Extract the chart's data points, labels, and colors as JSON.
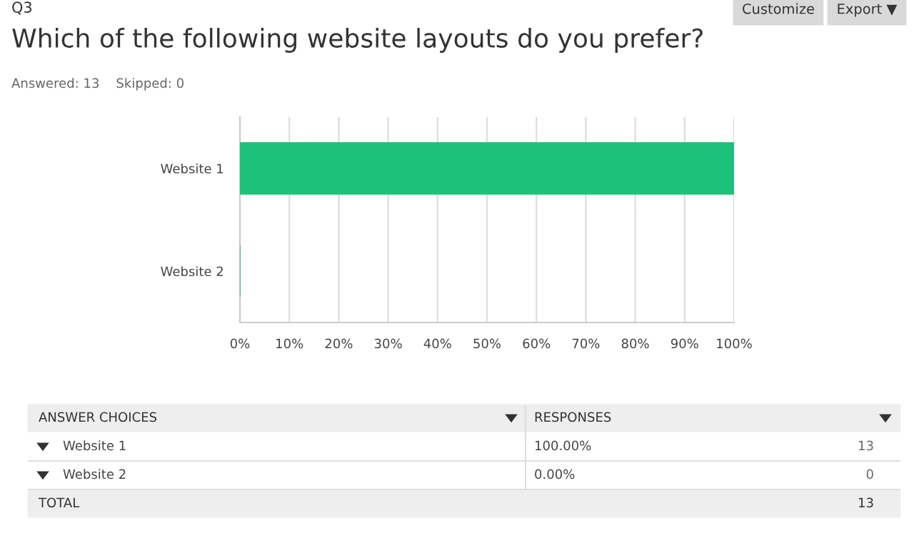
{
  "chart_data": {
    "type": "bar",
    "orientation": "horizontal",
    "title": "Which of the following website layouts do you prefer?",
    "subtitle": "Answered: 13    Skipped: 0",
    "categories": [
      "Website 1",
      "Website 2"
    ],
    "values": [
      100,
      0
    ],
    "color": "#1cc27a",
    "xlim": [
      0,
      100
    ],
    "xticks": [
      {
        "value": 0,
        "label": "0%"
      },
      {
        "value": 10,
        "label": "10%"
      },
      {
        "value": 20,
        "label": "20%"
      },
      {
        "value": 30,
        "label": "30%"
      },
      {
        "value": 40,
        "label": "40%"
      },
      {
        "value": 50,
        "label": "50%"
      },
      {
        "value": 60,
        "label": "60%"
      },
      {
        "value": 70,
        "label": "70%"
      },
      {
        "value": 80,
        "label": "80%"
      },
      {
        "value": 90,
        "label": "90%"
      },
      {
        "value": 100,
        "label": "100%"
      }
    ],
    "grid": "x",
    "annotations": [
      "Q3",
      "Customize",
      "Export ▼",
      "ANSWER CHOICES",
      "RESPONSES",
      "100.00%",
      "13",
      "0.00%",
      "0",
      "TOTAL",
      "13"
    ]
  }
}
